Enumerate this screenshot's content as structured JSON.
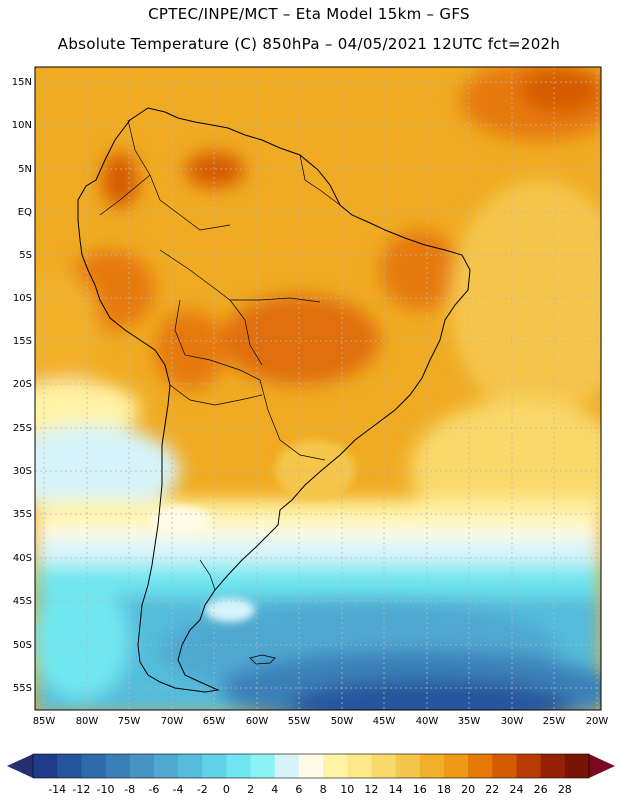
{
  "header": {
    "line1": "CPTEC/INPE/MCT –  Eta Model 15km – GFS",
    "line2": "Absolute Temperature (C) 850hPa – 04/05/2021 12UTC fct=202h"
  },
  "map": {
    "region": "South America",
    "variable": "Absolute Temperature (C) at 850hPa",
    "lat_labels": [
      "15N",
      "10N",
      "5N",
      "EQ",
      "5S",
      "10S",
      "15S",
      "20S",
      "25S",
      "30S",
      "35S",
      "40S",
      "45S",
      "50S",
      "55S"
    ],
    "lon_labels": [
      "85W",
      "80W",
      "75W",
      "70W",
      "65W",
      "60W",
      "55W",
      "50W",
      "45W",
      "40W",
      "35W",
      "30W",
      "25W",
      "20W"
    ]
  },
  "colorbar": {
    "labels": [
      "-14",
      "-12",
      "-10",
      "-8",
      "-6",
      "-4",
      "-2",
      "0",
      "2",
      "4",
      "6",
      "8",
      "10",
      "12",
      "14",
      "16",
      "18",
      "20",
      "22",
      "24",
      "26",
      "28"
    ],
    "colors": [
      "#1e3c8a",
      "#27559b",
      "#2f6aaa",
      "#3a80b8",
      "#4794c4",
      "#4fa8d0",
      "#55bcdc",
      "#5fd2e6",
      "#6fe6ef",
      "#8cf3f5",
      "#d6f4fa",
      "#fffbe6",
      "#fff3a6",
      "#fde88a",
      "#f9d96a",
      "#f5c64c",
      "#f1b02c",
      "#ee9a15",
      "#e67908",
      "#d65a04",
      "#b93a04",
      "#962205",
      "#7a1404"
    ],
    "under_color": "#26306e",
    "over_color": "#7a0820"
  }
}
